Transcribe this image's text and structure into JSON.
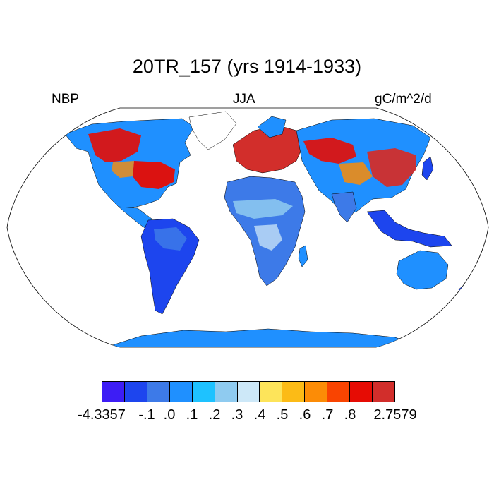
{
  "title": "20TR_157 (yrs 1914-1933)",
  "left_label": "NBP",
  "center_label": "JJA",
  "right_label": "gC/m^2/d",
  "colors": {
    "ocean": "#ffffff",
    "outline": "#000000",
    "antarctica": "#1f90ff",
    "land_default": "#1f90ff"
  },
  "colorbar": {
    "colors": [
      "#3d1df5",
      "#1d45ee",
      "#3d7ae8",
      "#1f90ff",
      "#1ec2ff",
      "#8fcbf0",
      "#cde8f8",
      "#fde45a",
      "#fcbb16",
      "#fc8c06",
      "#f94401",
      "#e60c04",
      "#d22e2b"
    ],
    "tick_labels": [
      "-4.3357",
      "-.1",
      ".0",
      ".1",
      ".2",
      ".3",
      ".4",
      ".5",
      ".6",
      ".7",
      ".8",
      "2.7579"
    ]
  },
  "map_regions": [
    {
      "region": "Northern North America (Canada)",
      "value_class": "mixed red/orange/blue"
    },
    {
      "region": "Eastern United States",
      "value_class": "high (red)"
    },
    {
      "region": "Europe",
      "value_class": "high (red)"
    },
    {
      "region": "Eastern Asia / Siberia",
      "value_class": "high (red)"
    },
    {
      "region": "South America",
      "value_class": "low (blue)"
    },
    {
      "region": "Africa",
      "value_class": "low-moderate (light blue)"
    },
    {
      "region": "Australia",
      "value_class": "low (blue)"
    },
    {
      "region": "Antarctica",
      "value_class": "near zero (blue)"
    }
  ]
}
